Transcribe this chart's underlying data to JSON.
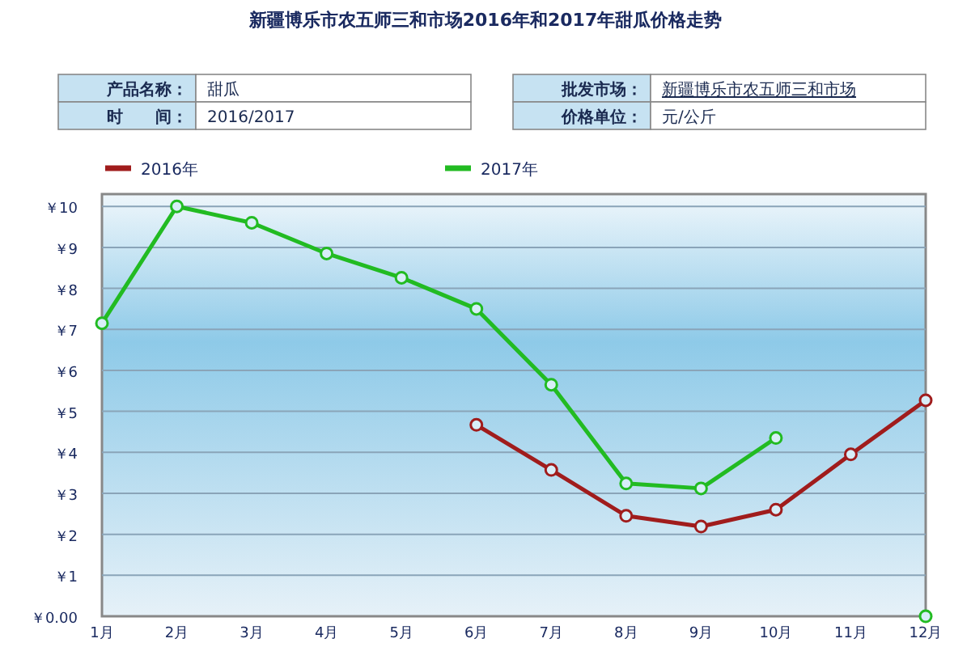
{
  "chart_data": {
    "type": "line",
    "title": "新疆博乐市农五师三和市场2016年和2017年甜瓜价格走势",
    "annotations": [
      "产品名称：",
      "甜瓜",
      "批发市场：",
      "新疆博乐市农五师三和市场",
      "时　　间：",
      "2016/2017",
      "价格单位：",
      "元/公斤"
    ],
    "categories": [
      "1月",
      "2月",
      "3月",
      "4月",
      "5月",
      "6月",
      "7月",
      "8月",
      "9月",
      "10月",
      "11月",
      "12月"
    ],
    "series": [
      {
        "name": "2016年",
        "color": "#a01c1c",
        "values": [
          null,
          null,
          null,
          null,
          null,
          4.67,
          3.57,
          2.45,
          2.19,
          2.6,
          3.95,
          5.27
        ]
      },
      {
        "name": "2017年",
        "color": "#22bb22",
        "values": [
          7.15,
          10,
          9.6,
          8.85,
          8.26,
          7.5,
          5.65,
          3.24,
          3.12,
          4.35,
          null,
          0
        ]
      }
    ],
    "ylim": [
      0,
      10.3
    ],
    "yticks": [
      {
        "value": 0,
        "label": "￥0.00"
      },
      {
        "value": 1,
        "label": "￥1"
      },
      {
        "value": 2,
        "label": "￥2"
      },
      {
        "value": 3,
        "label": "￥3"
      },
      {
        "value": 4,
        "label": "￥4"
      },
      {
        "value": 5,
        "label": "￥5"
      },
      {
        "value": 6,
        "label": "￥6"
      },
      {
        "value": 7,
        "label": "￥7"
      },
      {
        "value": 8,
        "label": "￥8"
      },
      {
        "value": 9,
        "label": "￥9"
      },
      {
        "value": 10,
        "label": "￥10"
      }
    ],
    "grid": "y",
    "legend": "top left",
    "marker": "circle",
    "line_style": "solid"
  }
}
